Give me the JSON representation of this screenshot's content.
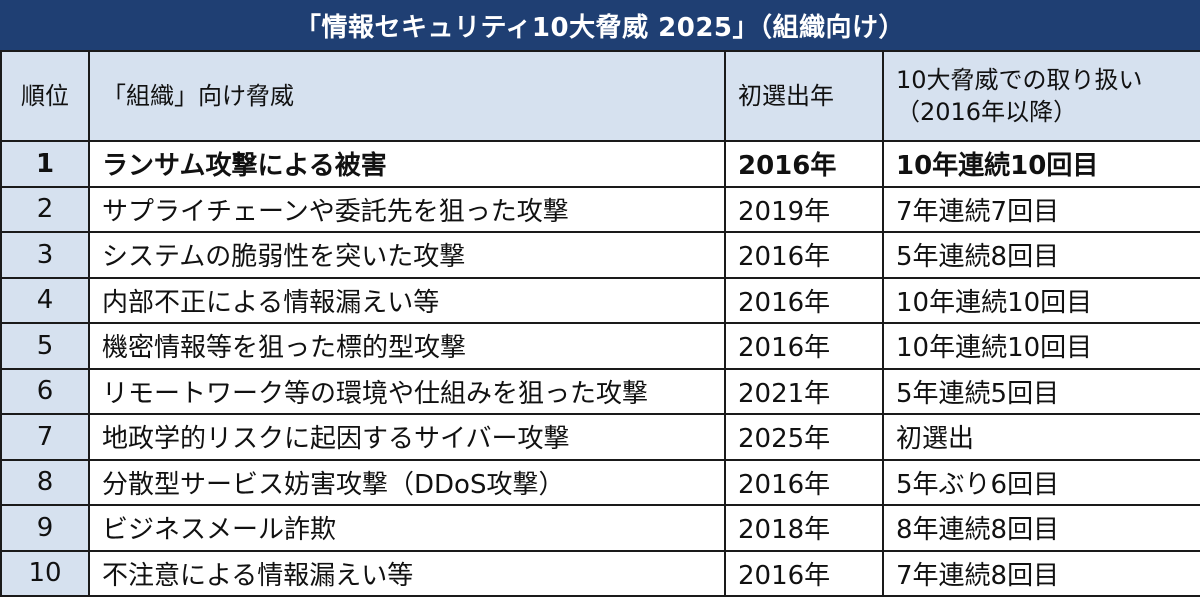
{
  "title": "「情報セキュリティ10大脅威 2025」（組織向け）",
  "header": {
    "rank": "順位",
    "threat": "「組織」向け脅威",
    "first_selected": "初選出年",
    "treatment_line1": "10大脅威での取り扱い",
    "treatment_line2": "（2016年以降）"
  },
  "rows": [
    {
      "rank": "1",
      "threat": "ランサム攻撃による被害",
      "year": "2016年",
      "treatment": "10年連続10回目"
    },
    {
      "rank": "2",
      "threat": "サプライチェーンや委託先を狙った攻撃",
      "year": "2019年",
      "treatment": "7年連続7回目"
    },
    {
      "rank": "3",
      "threat": "システムの脆弱性を突いた攻撃",
      "year": "2016年",
      "treatment": "5年連続8回目"
    },
    {
      "rank": "4",
      "threat": "内部不正による情報漏えい等",
      "year": "2016年",
      "treatment": "10年連続10回目"
    },
    {
      "rank": "5",
      "threat": "機密情報等を狙った標的型攻撃",
      "year": "2016年",
      "treatment": "10年連続10回目"
    },
    {
      "rank": "6",
      "threat": "リモートワーク等の環境や仕組みを狙った攻撃",
      "year": "2021年",
      "treatment": "5年連続5回目"
    },
    {
      "rank": "7",
      "threat": "地政学的リスクに起因するサイバー攻撃",
      "year": "2025年",
      "treatment": "初選出"
    },
    {
      "rank": "8",
      "threat": "分散型サービス妨害攻撃（DDoS攻撃）",
      "year": "2016年",
      "treatment": "5年ぶり6回目"
    },
    {
      "rank": "9",
      "threat": "ビジネスメール詐欺",
      "year": "2018年",
      "treatment": "8年連続8回目"
    },
    {
      "rank": "10",
      "threat": "不注意による情報漏えい等",
      "year": "2016年",
      "treatment": "7年連続8回目"
    }
  ],
  "colors": {
    "banner_bg": "#1f3f73",
    "banner_text": "#ffffff",
    "header_bg": "#d6e1ef",
    "border": "#1a1a1a"
  }
}
